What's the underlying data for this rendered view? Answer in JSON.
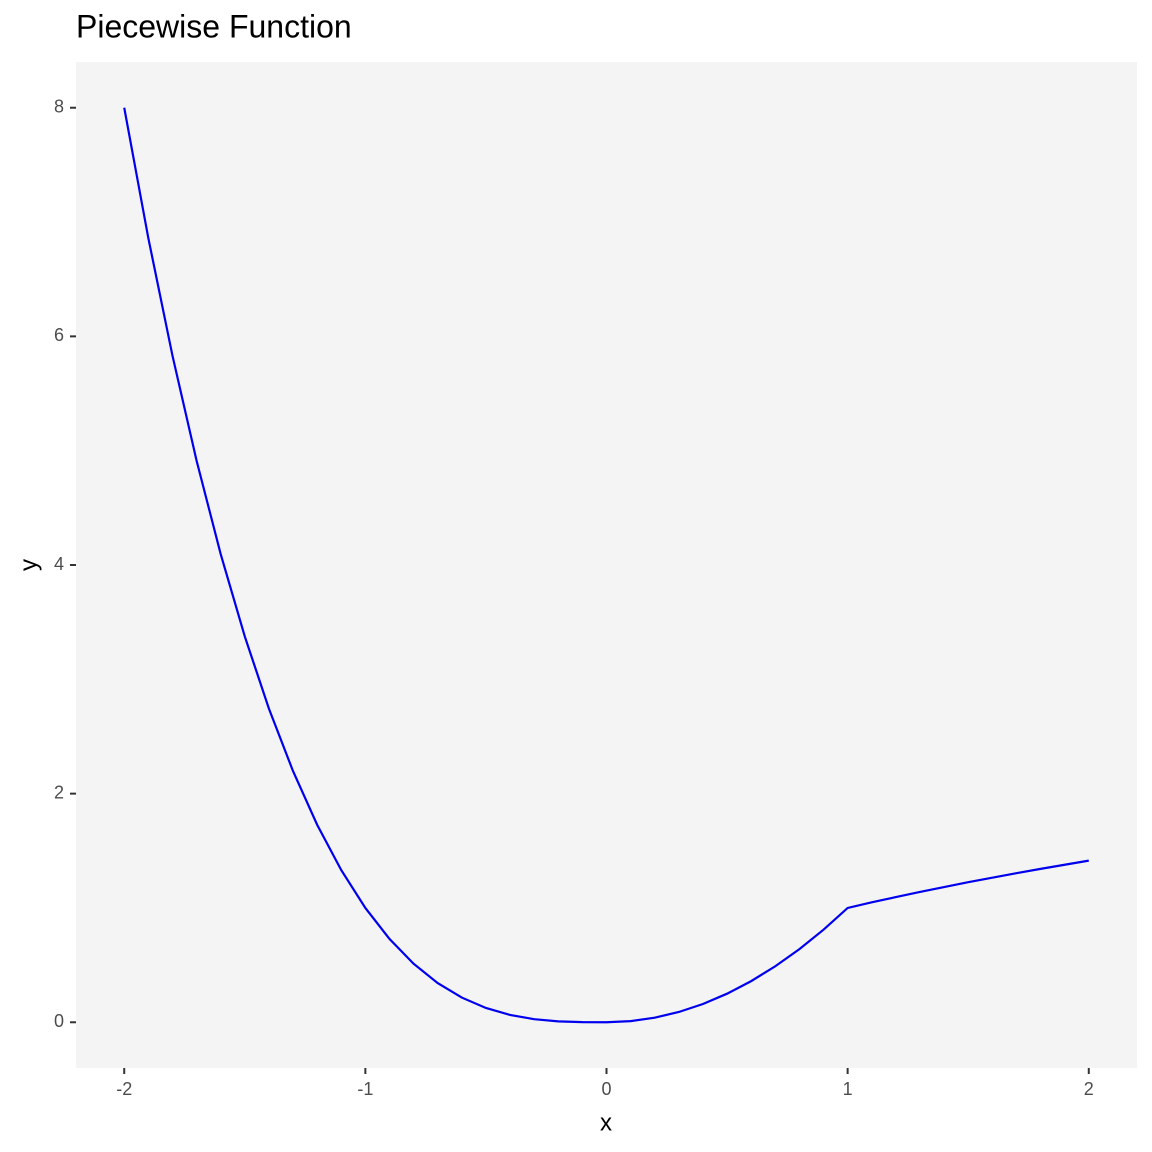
{
  "chart_data": {
    "type": "line",
    "title": "Piecewise Function",
    "x_label": "x",
    "y_label": "y",
    "x": [
      -2,
      -1.9,
      -1.8,
      -1.7,
      -1.6,
      -1.5,
      -1.4,
      -1.3,
      -1.2,
      -1.1,
      -1,
      -0.9,
      -0.8,
      -0.7,
      -0.6,
      -0.5,
      -0.4,
      -0.3,
      -0.2,
      -0.1,
      0,
      0.1,
      0.2,
      0.3,
      0.4,
      0.5,
      0.6,
      0.7,
      0.8,
      0.9,
      1,
      1.1,
      1.2,
      1.3,
      1.4,
      1.5,
      1.6,
      1.7,
      1.8,
      1.9,
      2
    ],
    "series": [
      {
        "color": "#0000ee",
        "values": [
          8,
          6.859,
          5.832,
          4.913,
          4.096,
          3.375,
          2.744,
          2.197,
          1.728,
          1.331,
          1,
          0.729,
          0.512,
          0.343,
          0.216,
          0.125,
          0.064,
          0.027,
          0.008,
          0.001,
          0,
          0.01,
          0.04,
          0.09,
          0.16,
          0.25,
          0.36,
          0.49,
          0.64,
          0.81,
          1,
          1.049,
          1.095,
          1.14,
          1.183,
          1.225,
          1.265,
          1.304,
          1.342,
          1.378,
          1.414
        ]
      }
    ],
    "xlim": [
      -2.2,
      2.2
    ],
    "xticks": [
      -2,
      -1,
      0,
      1,
      2
    ],
    "ylim": [
      -0.4,
      8.4
    ],
    "yticks": [
      0,
      2,
      4,
      6,
      8
    ],
    "grid": false,
    "background": "#f4f4f4"
  }
}
